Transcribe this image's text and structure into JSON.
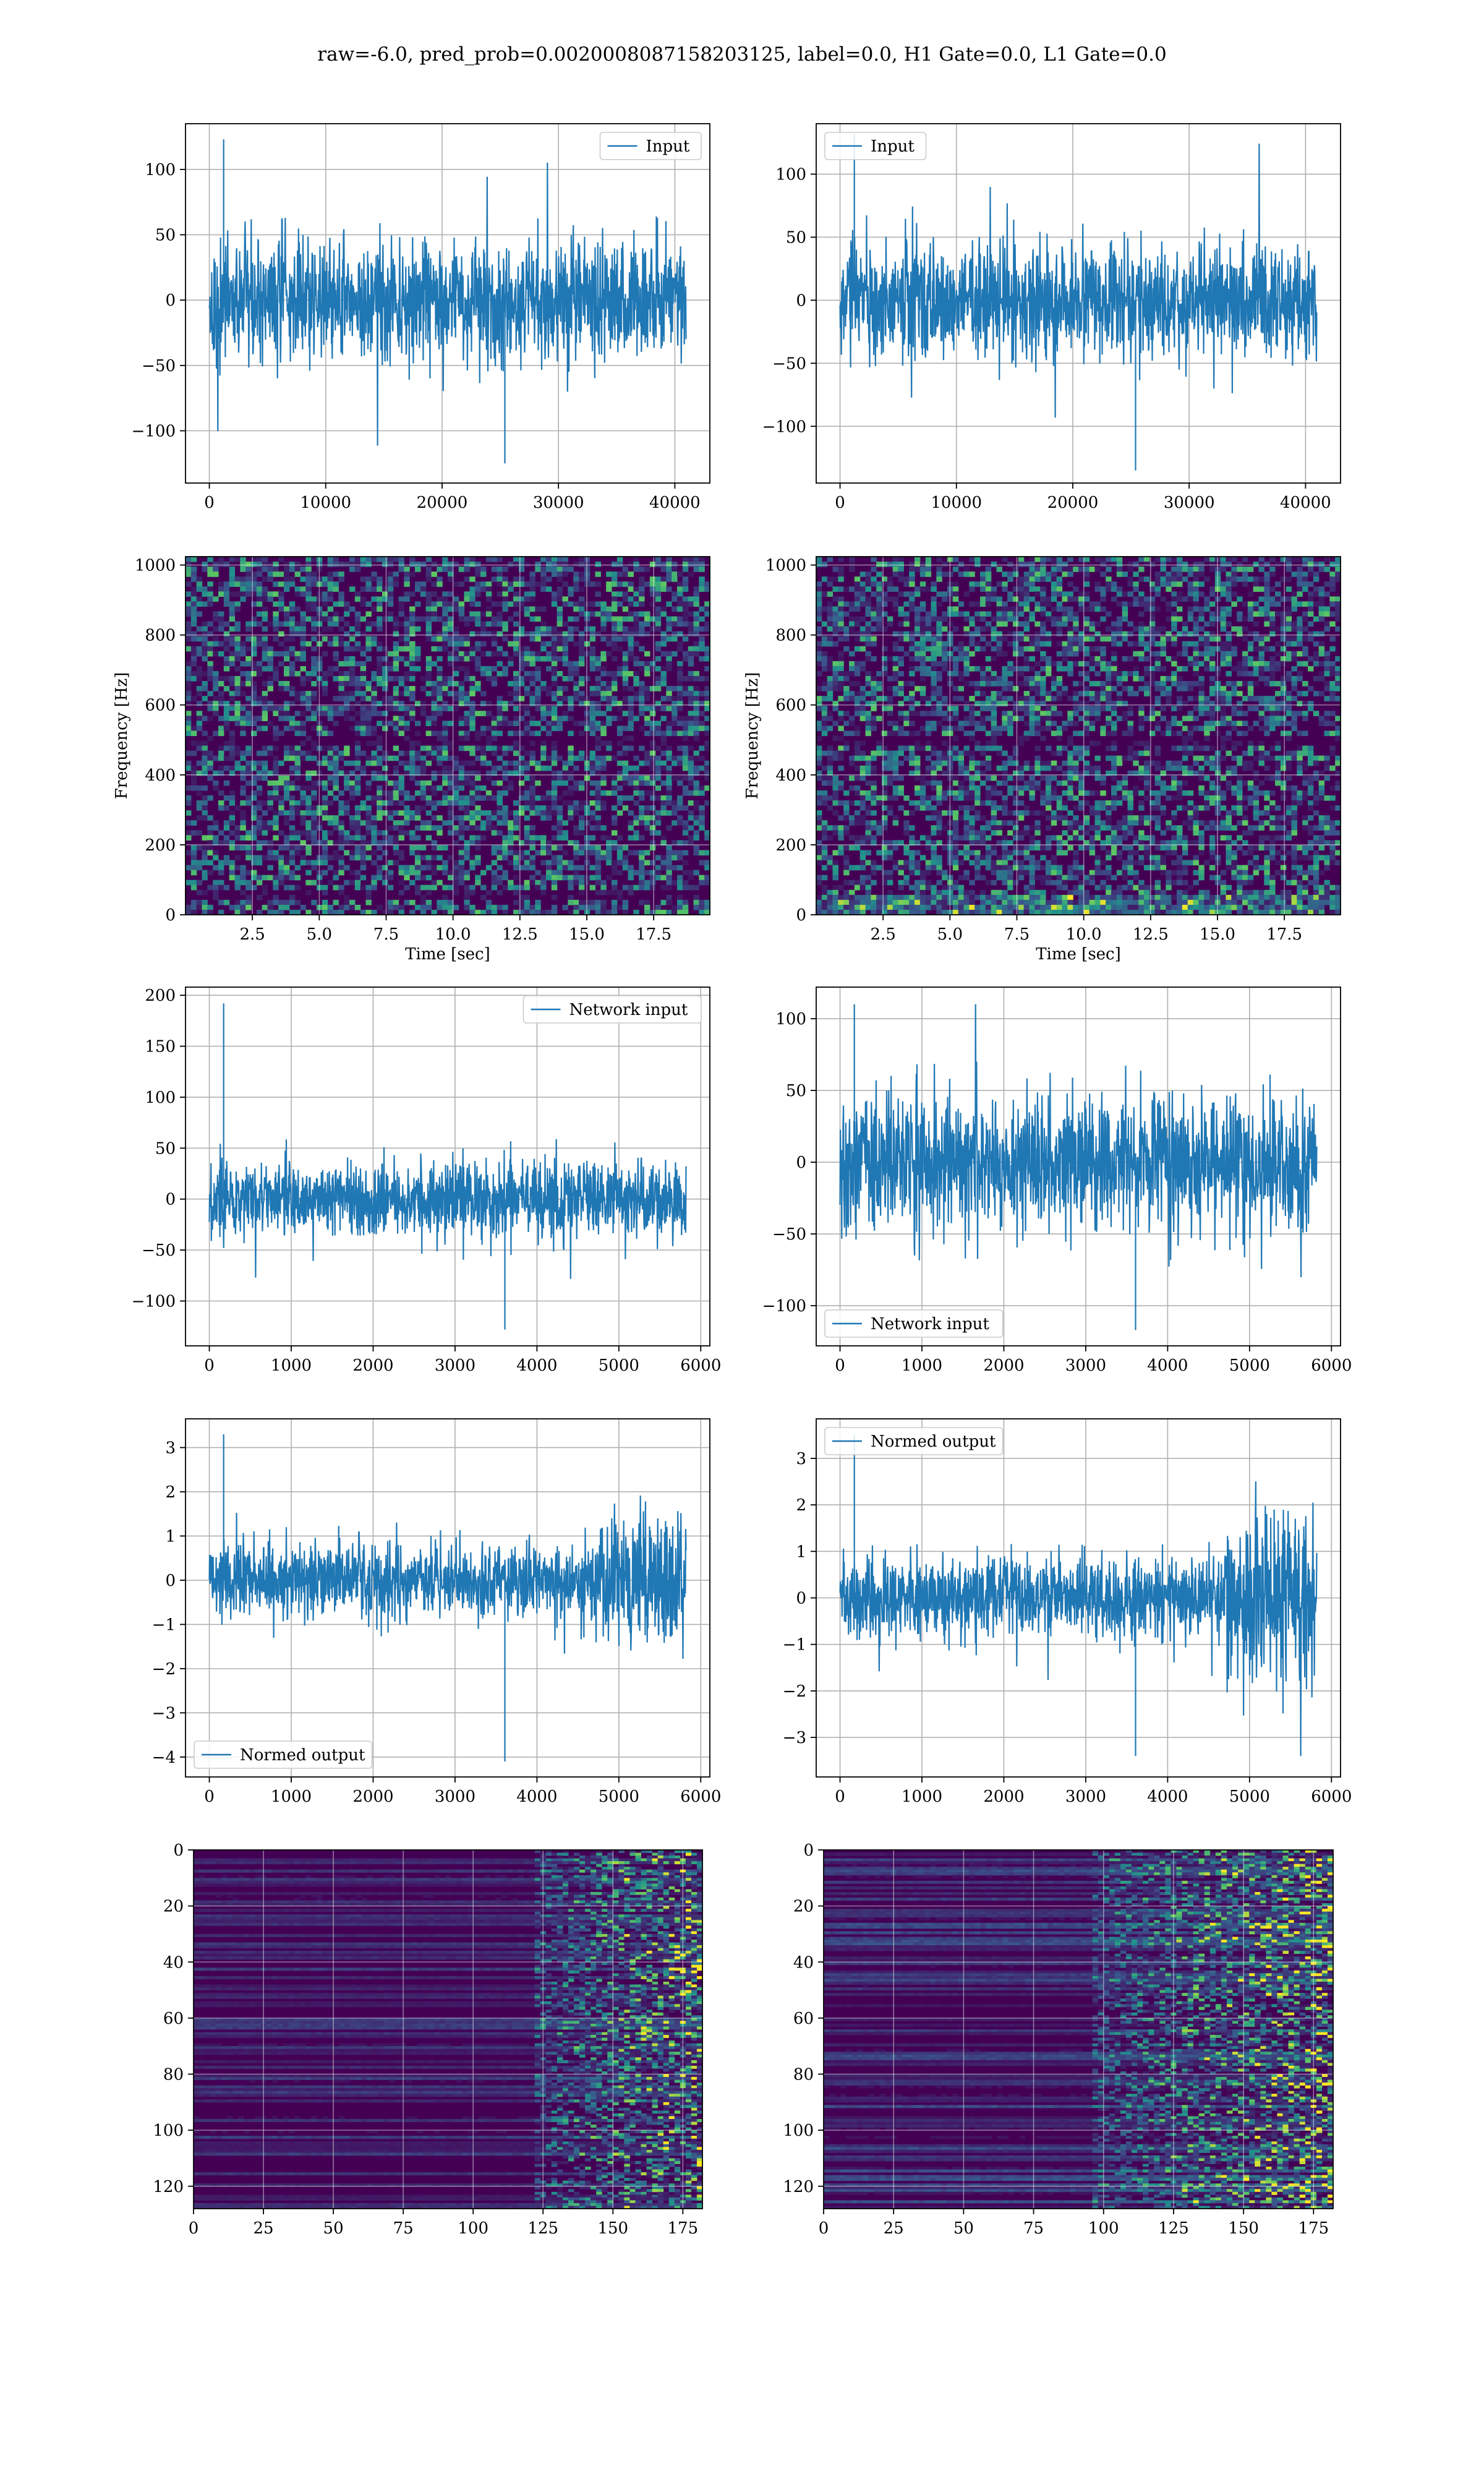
{
  "suptitle": "raw=-6.0, pred_prob=0.0020008087158203125, label=0.0, H1 Gate=0.0, L1 Gate=0.0",
  "colors": {
    "line": "#1f77b4",
    "grid": "#b0b0b0",
    "axes": "#000000",
    "viridis_dark": "#440154",
    "viridis_mid": "#21918c",
    "viridis_bright": "#fde725"
  },
  "chart_data": [
    {
      "id": "input-h1",
      "type": "line",
      "series": [
        {
          "name": "Input",
          "x_range": [
            0,
            40960
          ],
          "y_range": [
            -125,
            123
          ],
          "typical_amplitude": 55
        }
      ],
      "xlim": [
        -2048,
        43008
      ],
      "ylim": [
        -140,
        135
      ],
      "xticks": [
        0,
        10000,
        20000,
        30000,
        40000
      ],
      "xtick_labels": [
        "0",
        "10000",
        "20000",
        "30000",
        "40000"
      ],
      "yticks": [
        -100,
        -50,
        0,
        50,
        100
      ],
      "ytick_labels": [
        "−100",
        "−50",
        "0",
        "50",
        "100"
      ],
      "xlabel": "",
      "ylabel": "",
      "legend": "upper right",
      "grid": true
    },
    {
      "id": "input-l1",
      "type": "line",
      "series": [
        {
          "name": "Input",
          "x_range": [
            0,
            40960
          ],
          "y_range": [
            -135,
            132
          ],
          "typical_amplitude": 55
        }
      ],
      "xlim": [
        -2048,
        43008
      ],
      "ylim": [
        -145,
        140
      ],
      "xticks": [
        0,
        10000,
        20000,
        30000,
        40000
      ],
      "xtick_labels": [
        "0",
        "10000",
        "20000",
        "30000",
        "40000"
      ],
      "yticks": [
        -100,
        -50,
        0,
        50,
        100
      ],
      "ytick_labels": [
        "−100",
        "−50",
        "0",
        "50",
        "100"
      ],
      "xlabel": "",
      "ylabel": "",
      "legend": "upper left",
      "grid": true
    },
    {
      "id": "spectrogram-h1",
      "type": "heatmap",
      "xlim": [
        0,
        19.6
      ],
      "ylim": [
        0,
        1024
      ],
      "xticks": [
        2.5,
        5.0,
        7.5,
        10.0,
        12.5,
        15.0,
        17.5
      ],
      "xtick_labels": [
        "2.5",
        "5.0",
        "7.5",
        "10.0",
        "12.5",
        "15.0",
        "17.5"
      ],
      "yticks": [
        0,
        200,
        400,
        600,
        800,
        1000
      ],
      "ytick_labels": [
        "0",
        "200",
        "400",
        "600",
        "800",
        "1000"
      ],
      "xlabel": "Time [sec]",
      "ylabel": "Frequency [Hz]",
      "colormap": "viridis",
      "grid": true,
      "notes": [
        "dark horizontal band near 500 Hz",
        "dark band near 60 Hz"
      ]
    },
    {
      "id": "spectrogram-l1",
      "type": "heatmap",
      "xlim": [
        0,
        19.6
      ],
      "ylim": [
        0,
        1024
      ],
      "xticks": [
        2.5,
        5.0,
        7.5,
        10.0,
        12.5,
        15.0,
        17.5
      ],
      "xtick_labels": [
        "2.5",
        "5.0",
        "7.5",
        "10.0",
        "12.5",
        "15.0",
        "17.5"
      ],
      "yticks": [
        0,
        200,
        400,
        600,
        800,
        1000
      ],
      "ytick_labels": [
        "0",
        "200",
        "400",
        "600",
        "800",
        "1000"
      ],
      "xlabel": "Time [sec]",
      "ylabel": "Frequency [Hz]",
      "colormap": "viridis",
      "grid": true,
      "notes": [
        "dark horizontal band near 500 Hz",
        "brighter low-frequency content below 50 Hz"
      ]
    },
    {
      "id": "network-input-h1",
      "type": "line",
      "series": [
        {
          "name": "Network input",
          "x_range": [
            0,
            5820
          ],
          "y_range": [
            -128,
            192
          ],
          "typical_amplitude": 45
        }
      ],
      "xlim": [
        -291,
        6111
      ],
      "ylim": [
        -144,
        208
      ],
      "xticks": [
        0,
        1000,
        2000,
        3000,
        4000,
        5000,
        6000
      ],
      "xtick_labels": [
        "0",
        "1000",
        "2000",
        "3000",
        "4000",
        "5000",
        "6000"
      ],
      "yticks": [
        -100,
        -50,
        0,
        50,
        100,
        150,
        200
      ],
      "ytick_labels": [
        "−100",
        "−50",
        "0",
        "50",
        "100",
        "150",
        "200"
      ],
      "xlabel": "",
      "ylabel": "",
      "legend": "upper right",
      "grid": true
    },
    {
      "id": "network-input-l1",
      "type": "line",
      "series": [
        {
          "name": "Network input",
          "x_range": [
            0,
            5820
          ],
          "y_range": [
            -117,
            110
          ],
          "typical_amplitude": 55
        }
      ],
      "xlim": [
        -291,
        6111
      ],
      "ylim": [
        -128,
        122
      ],
      "xticks": [
        0,
        1000,
        2000,
        3000,
        4000,
        5000,
        6000
      ],
      "xtick_labels": [
        "0",
        "1000",
        "2000",
        "3000",
        "4000",
        "5000",
        "6000"
      ],
      "yticks": [
        -100,
        -50,
        0,
        50,
        100
      ],
      "ytick_labels": [
        "−100",
        "−50",
        "0",
        "50",
        "100"
      ],
      "xlabel": "",
      "ylabel": "",
      "legend": "lower left",
      "grid": true
    },
    {
      "id": "normed-output-h1",
      "type": "line",
      "series": [
        {
          "name": "Normed output",
          "x_range": [
            0,
            5820
          ],
          "y_range": [
            -4.1,
            3.3
          ],
          "typical_amplitude": 1.0,
          "notes": "amplitude increases after x≈4700"
        }
      ],
      "xlim": [
        -291,
        6111
      ],
      "ylim": [
        -4.45,
        3.65
      ],
      "xticks": [
        0,
        1000,
        2000,
        3000,
        4000,
        5000,
        6000
      ],
      "xtick_labels": [
        "0",
        "1000",
        "2000",
        "3000",
        "4000",
        "5000",
        "6000"
      ],
      "yticks": [
        -4,
        -3,
        -2,
        -1,
        0,
        1,
        2,
        3
      ],
      "ytick_labels": [
        "−4",
        "−3",
        "−2",
        "−1",
        "0",
        "1",
        "2",
        "3"
      ],
      "xlabel": "",
      "ylabel": "",
      "legend": "lower left",
      "grid": true
    },
    {
      "id": "normed-output-l1",
      "type": "line",
      "series": [
        {
          "name": "Normed output",
          "x_range": [
            0,
            5820
          ],
          "y_range": [
            -3.4,
            3.5
          ],
          "typical_amplitude": 1.0,
          "notes": "amplitude increases after x≈4700"
        }
      ],
      "xlim": [
        -291,
        6111
      ],
      "ylim": [
        -3.85,
        3.85
      ],
      "xticks": [
        0,
        1000,
        2000,
        3000,
        4000,
        5000,
        6000
      ],
      "xtick_labels": [
        "0",
        "1000",
        "2000",
        "3000",
        "4000",
        "5000",
        "6000"
      ],
      "yticks": [
        -3,
        -2,
        -1,
        0,
        1,
        2,
        3
      ],
      "ytick_labels": [
        "−3",
        "−2",
        "−1",
        "0",
        "1",
        "2",
        "3"
      ],
      "xlabel": "",
      "ylabel": "",
      "legend": "upper left",
      "grid": true
    },
    {
      "id": "feature-map-h1",
      "type": "heatmap",
      "xlim": [
        0,
        182
      ],
      "ylim": [
        128,
        0
      ],
      "xticks": [
        0,
        25,
        50,
        75,
        100,
        125,
        150,
        175
      ],
      "xtick_labels": [
        "0",
        "25",
        "50",
        "75",
        "100",
        "125",
        "150",
        "175"
      ],
      "yticks": [
        0,
        20,
        40,
        60,
        80,
        100,
        120
      ],
      "ytick_labels": [
        "0",
        "20",
        "40",
        "60",
        "80",
        "100",
        "120"
      ],
      "xlabel": "",
      "ylabel": "",
      "colormap": "viridis",
      "grid": true,
      "notes": "mostly dark horizontal stripes, bright activity concentrated at x > 140"
    },
    {
      "id": "feature-map-l1",
      "type": "heatmap",
      "xlim": [
        0,
        182
      ],
      "ylim": [
        128,
        0
      ],
      "xticks": [
        0,
        25,
        50,
        75,
        100,
        125,
        150,
        175
      ],
      "xtick_labels": [
        "0",
        "25",
        "50",
        "75",
        "100",
        "125",
        "150",
        "175"
      ],
      "yticks": [
        0,
        20,
        40,
        60,
        80,
        100,
        120
      ],
      "ytick_labels": [
        "0",
        "20",
        "40",
        "60",
        "80",
        "100",
        "120"
      ],
      "xlabel": "",
      "ylabel": "",
      "colormap": "viridis",
      "grid": true,
      "notes": "horizontal stripes, brighter activity at x > 110"
    }
  ]
}
